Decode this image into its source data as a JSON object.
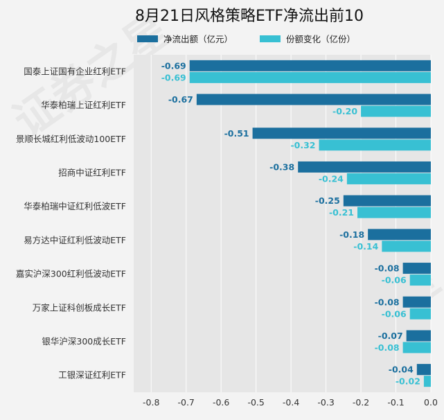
{
  "chart_data": {
    "type": "bar",
    "orientation": "horizontal",
    "title": "8月21日风格策略ETF净流出前10",
    "categories": [
      "国泰上证国有企业红利ETF",
      "华泰柏瑞上证红利ETF",
      "景顺长城红利低波动100ETF",
      "招商中证红利ETF",
      "华泰柏瑞中证红利低波ETF",
      "易方达中证红利低波动ETF",
      "嘉实沪深300红利低波动ETF",
      "万家上证科创板成长ETF",
      "银华沪深300成长ETF",
      "工银深证红利ETF"
    ],
    "series": [
      {
        "name": "净流出额（亿元）",
        "color": "#1b6f9e",
        "values": [
          -0.69,
          -0.67,
          -0.51,
          -0.38,
          -0.25,
          -0.18,
          -0.08,
          -0.08,
          -0.07,
          -0.04
        ],
        "labels": [
          "-0.69",
          "-0.67",
          "-0.51",
          "-0.38",
          "-0.25",
          "-0.18",
          "-0.08",
          "-0.08",
          "-0.07",
          "-0.04"
        ]
      },
      {
        "name": "份额变化（亿份）",
        "color": "#38c0d3",
        "values": [
          -0.69,
          -0.2,
          -0.32,
          -0.24,
          -0.21,
          -0.14,
          -0.06,
          -0.06,
          -0.08,
          -0.02
        ],
        "labels": [
          "-0.69",
          "-0.20",
          "-0.32",
          "-0.24",
          "-0.21",
          "-0.14",
          "-0.06",
          "-0.06",
          "-0.08",
          "-0.02"
        ]
      }
    ],
    "xlim": [
      -0.85,
      0.0
    ],
    "xticks": [
      "-0.8",
      "-0.7",
      "-0.6",
      "-0.5",
      "-0.4",
      "-0.3",
      "-0.2",
      "-0.1",
      "0.0"
    ],
    "xtick_values": [
      -0.8,
      -0.7,
      -0.6,
      -0.5,
      -0.4,
      -0.3,
      -0.2,
      -0.1,
      0.0
    ],
    "grid": "vertical",
    "legend_position": "top-center",
    "plot_background": "#e6e6e6",
    "page_background": "#f3f3f3",
    "watermark": "证券之星"
  }
}
